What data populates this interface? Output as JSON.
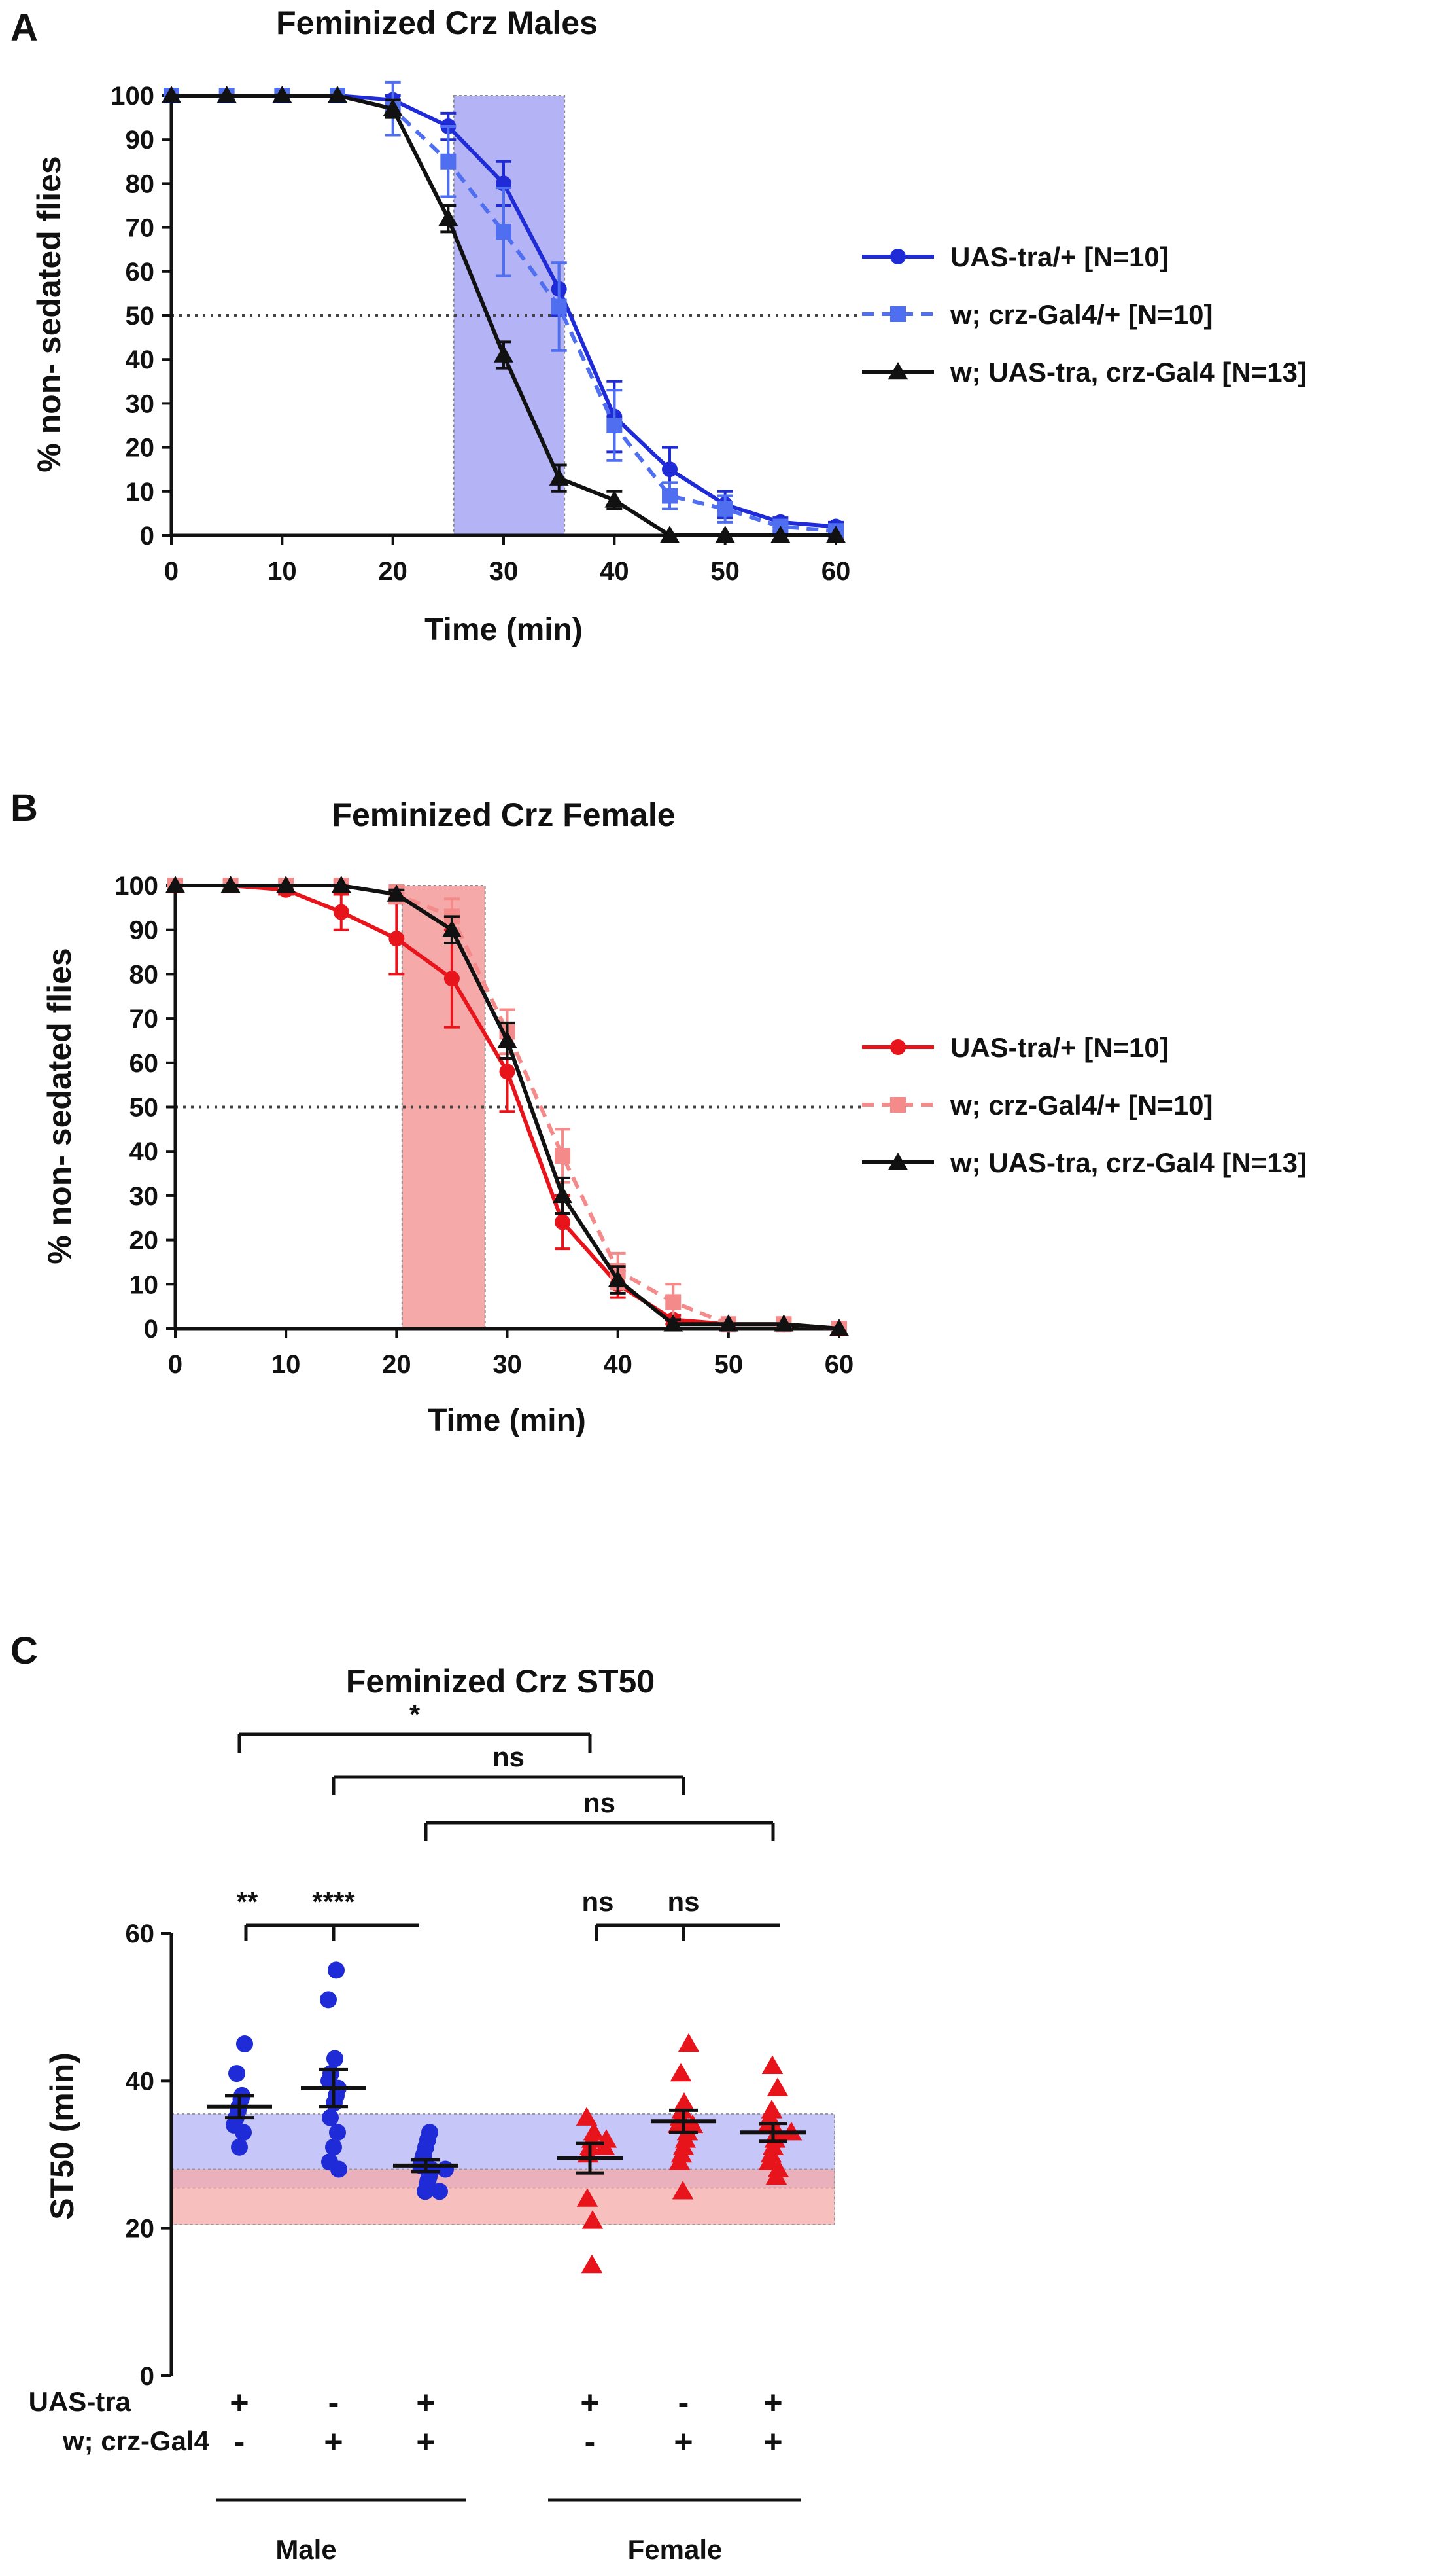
{
  "panels": {
    "A": {
      "letter": "A",
      "chart_data": {
        "type": "line",
        "title": "Feminized Crz Males",
        "xlabel": "Time (min)",
        "ylabel": "% non- sedated flies",
        "xlim": [
          0,
          60
        ],
        "ylim": [
          0,
          100
        ],
        "xticks": [
          0,
          10,
          20,
          30,
          40,
          50,
          60
        ],
        "yticks": [
          0,
          10,
          20,
          30,
          40,
          50,
          60,
          70,
          80,
          90,
          100
        ],
        "reference_line_y": 50,
        "shaded_region": {
          "x": [
            25.5,
            35.5
          ],
          "color": "#b3b3f5"
        },
        "x": [
          0,
          5,
          10,
          15,
          20,
          25,
          30,
          35,
          40,
          45,
          50,
          55,
          60
        ],
        "series": [
          {
            "name": "UAS-tra/+ [N=10]",
            "color": "#1f2bd6",
            "marker": "circle",
            "dash": false,
            "values": [
              100,
              100,
              100,
              100,
              99,
              93,
              80,
              56,
              27,
              15,
              7,
              3,
              2
            ],
            "errors": [
              0,
              0,
              0,
              0,
              1,
              3,
              5,
              6,
              8,
              5,
              3,
              1,
              1
            ]
          },
          {
            "name": "w; crz-Gal4/+ [N=10]",
            "color": "#4f6ff0",
            "marker": "square",
            "dash": true,
            "values": [
              100,
              100,
              100,
              100,
              97,
              85,
              69,
              52,
              25,
              9,
              6,
              2,
              1
            ],
            "errors": [
              0,
              0,
              0,
              0,
              6,
              8,
              10,
              10,
              8,
              3,
              3,
              1,
              1
            ]
          },
          {
            "name": "w; UAS-tra, crz-Gal4 [N=13]",
            "color": "#111111",
            "marker": "triangle",
            "dash": false,
            "values": [
              100,
              100,
              100,
              100,
              97,
              72,
              41,
              13,
              8,
              0,
              0,
              0,
              0
            ],
            "errors": [
              0,
              0,
              0,
              0,
              2,
              3,
              3,
              3,
              2,
              0,
              0,
              0,
              0
            ]
          }
        ]
      }
    },
    "B": {
      "letter": "B",
      "chart_data": {
        "type": "line",
        "title": "Feminized Crz Female",
        "xlabel": "Time (min)",
        "ylabel": "% non- sedated flies",
        "xlim": [
          0,
          60
        ],
        "ylim": [
          0,
          100
        ],
        "xticks": [
          0,
          10,
          20,
          30,
          40,
          50,
          60
        ],
        "yticks": [
          0,
          10,
          20,
          30,
          40,
          50,
          60,
          70,
          80,
          90,
          100
        ],
        "reference_line_y": 50,
        "shaded_region": {
          "x": [
            20.5,
            28
          ],
          "color": "#f6a9a9"
        },
        "x": [
          0,
          5,
          10,
          15,
          20,
          25,
          30,
          35,
          40,
          45,
          50,
          55,
          60
        ],
        "series": [
          {
            "name": "UAS-tra/+ [N=10]",
            "color": "#e8141c",
            "marker": "circle",
            "dash": false,
            "values": [
              100,
              100,
              99,
              94,
              88,
              79,
              58,
              24,
              10,
              2,
              1,
              1,
              0
            ],
            "errors": [
              0,
              0,
              1,
              4,
              8,
              11,
              9,
              6,
              3,
              1,
              0,
              0,
              0
            ]
          },
          {
            "name": "w; crz-Gal4/+ [N=10]",
            "color": "#f58a8a",
            "marker": "square",
            "dash": true,
            "values": [
              100,
              100,
              100,
              100,
              98,
              93,
              67,
              39,
              13,
              6,
              1,
              1,
              0
            ],
            "errors": [
              0,
              0,
              0,
              1,
              2,
              4,
              5,
              6,
              4,
              4,
              1,
              1,
              0
            ]
          },
          {
            "name": "w; UAS-tra, crz-Gal4 [N=13]",
            "color": "#111111",
            "marker": "triangle",
            "dash": false,
            "values": [
              100,
              100,
              100,
              100,
              98,
              90,
              65,
              30,
              11,
              1,
              1,
              1,
              0
            ],
            "errors": [
              0,
              0,
              0,
              0,
              1,
              3,
              4,
              4,
              3,
              1,
              0,
              0,
              0
            ]
          }
        ]
      }
    },
    "C": {
      "letter": "C",
      "chart_data": {
        "type": "scatter",
        "title": "Feminized Crz ST50",
        "ylabel": "ST50 (min)",
        "ylim": [
          0,
          60
        ],
        "yticks": [
          0,
          20,
          40,
          60
        ],
        "bands": [
          {
            "y": [
              25.5,
              35.5
            ],
            "color": "#b3b3f5"
          },
          {
            "y": [
              20.5,
              28
            ],
            "color": "#f6a9a9"
          }
        ],
        "row_labels": [
          "UAS-tra",
          "w; crz-Gal4"
        ],
        "groups": [
          {
            "sex": "Male",
            "color": "#1f2bd6",
            "marker": "circle",
            "uas_tra": "+",
            "crz_gal4": "-",
            "mean": 36.5,
            "sem": 1.5,
            "points": [
              45,
              41,
              38,
              37.5,
              36.5,
              36,
              35,
              34,
              33,
              31
            ]
          },
          {
            "sex": "Male",
            "color": "#1f2bd6",
            "marker": "circle",
            "uas_tra": "-",
            "crz_gal4": "+",
            "mean": 39,
            "sem": 2.5,
            "points": [
              55,
              51,
              43,
              41,
              40,
              39,
              38,
              37,
              35,
              33,
              31,
              29,
              28
            ]
          },
          {
            "sex": "Male",
            "color": "#1f2bd6",
            "marker": "circle",
            "uas_tra": "+",
            "crz_gal4": "+",
            "mean": 28.5,
            "sem": 0.8,
            "points": [
              33,
              32,
              31,
              30,
              29.5,
              29,
              28.5,
              28,
              28,
              27.5,
              27,
              26.5,
              26,
              25,
              25
            ]
          },
          {
            "sex": "Female",
            "color": "#e8141c",
            "marker": "triangle",
            "uas_tra": "+",
            "crz_gal4": "-",
            "mean": 29.5,
            "sem": 2,
            "points": [
              35,
              33,
              32,
              32,
              31,
              31,
              30,
              24,
              21,
              15
            ]
          },
          {
            "sex": "Female",
            "color": "#e8141c",
            "marker": "triangle",
            "uas_tra": "-",
            "crz_gal4": "+",
            "mean": 34.5,
            "sem": 1.5,
            "points": [
              45,
              41,
              37,
              36,
              35,
              34,
              34,
              33,
              32,
              31,
              30,
              29,
              25
            ]
          },
          {
            "sex": "Female",
            "color": "#e8141c",
            "marker": "triangle",
            "uas_tra": "+",
            "crz_gal4": "+",
            "mean": 33,
            "sem": 1.2,
            "points": [
              42,
              39,
              36,
              35,
              34,
              33,
              33,
              32,
              31,
              30,
              29,
              28,
              27
            ]
          }
        ],
        "sex_labels": [
          "Male",
          "Female"
        ],
        "comparisons": [
          {
            "from": 0,
            "to": 3,
            "label": "*"
          },
          {
            "from": 1,
            "to": 4,
            "label": "ns"
          },
          {
            "from": 2,
            "to": 5,
            "label": "ns"
          },
          {
            "from": 0,
            "to": 2,
            "label": "**",
            "label2": "****",
            "stem": 1
          },
          {
            "from": 3,
            "to": 5,
            "label": "ns",
            "label2": "ns",
            "stem": 4
          }
        ]
      }
    }
  }
}
